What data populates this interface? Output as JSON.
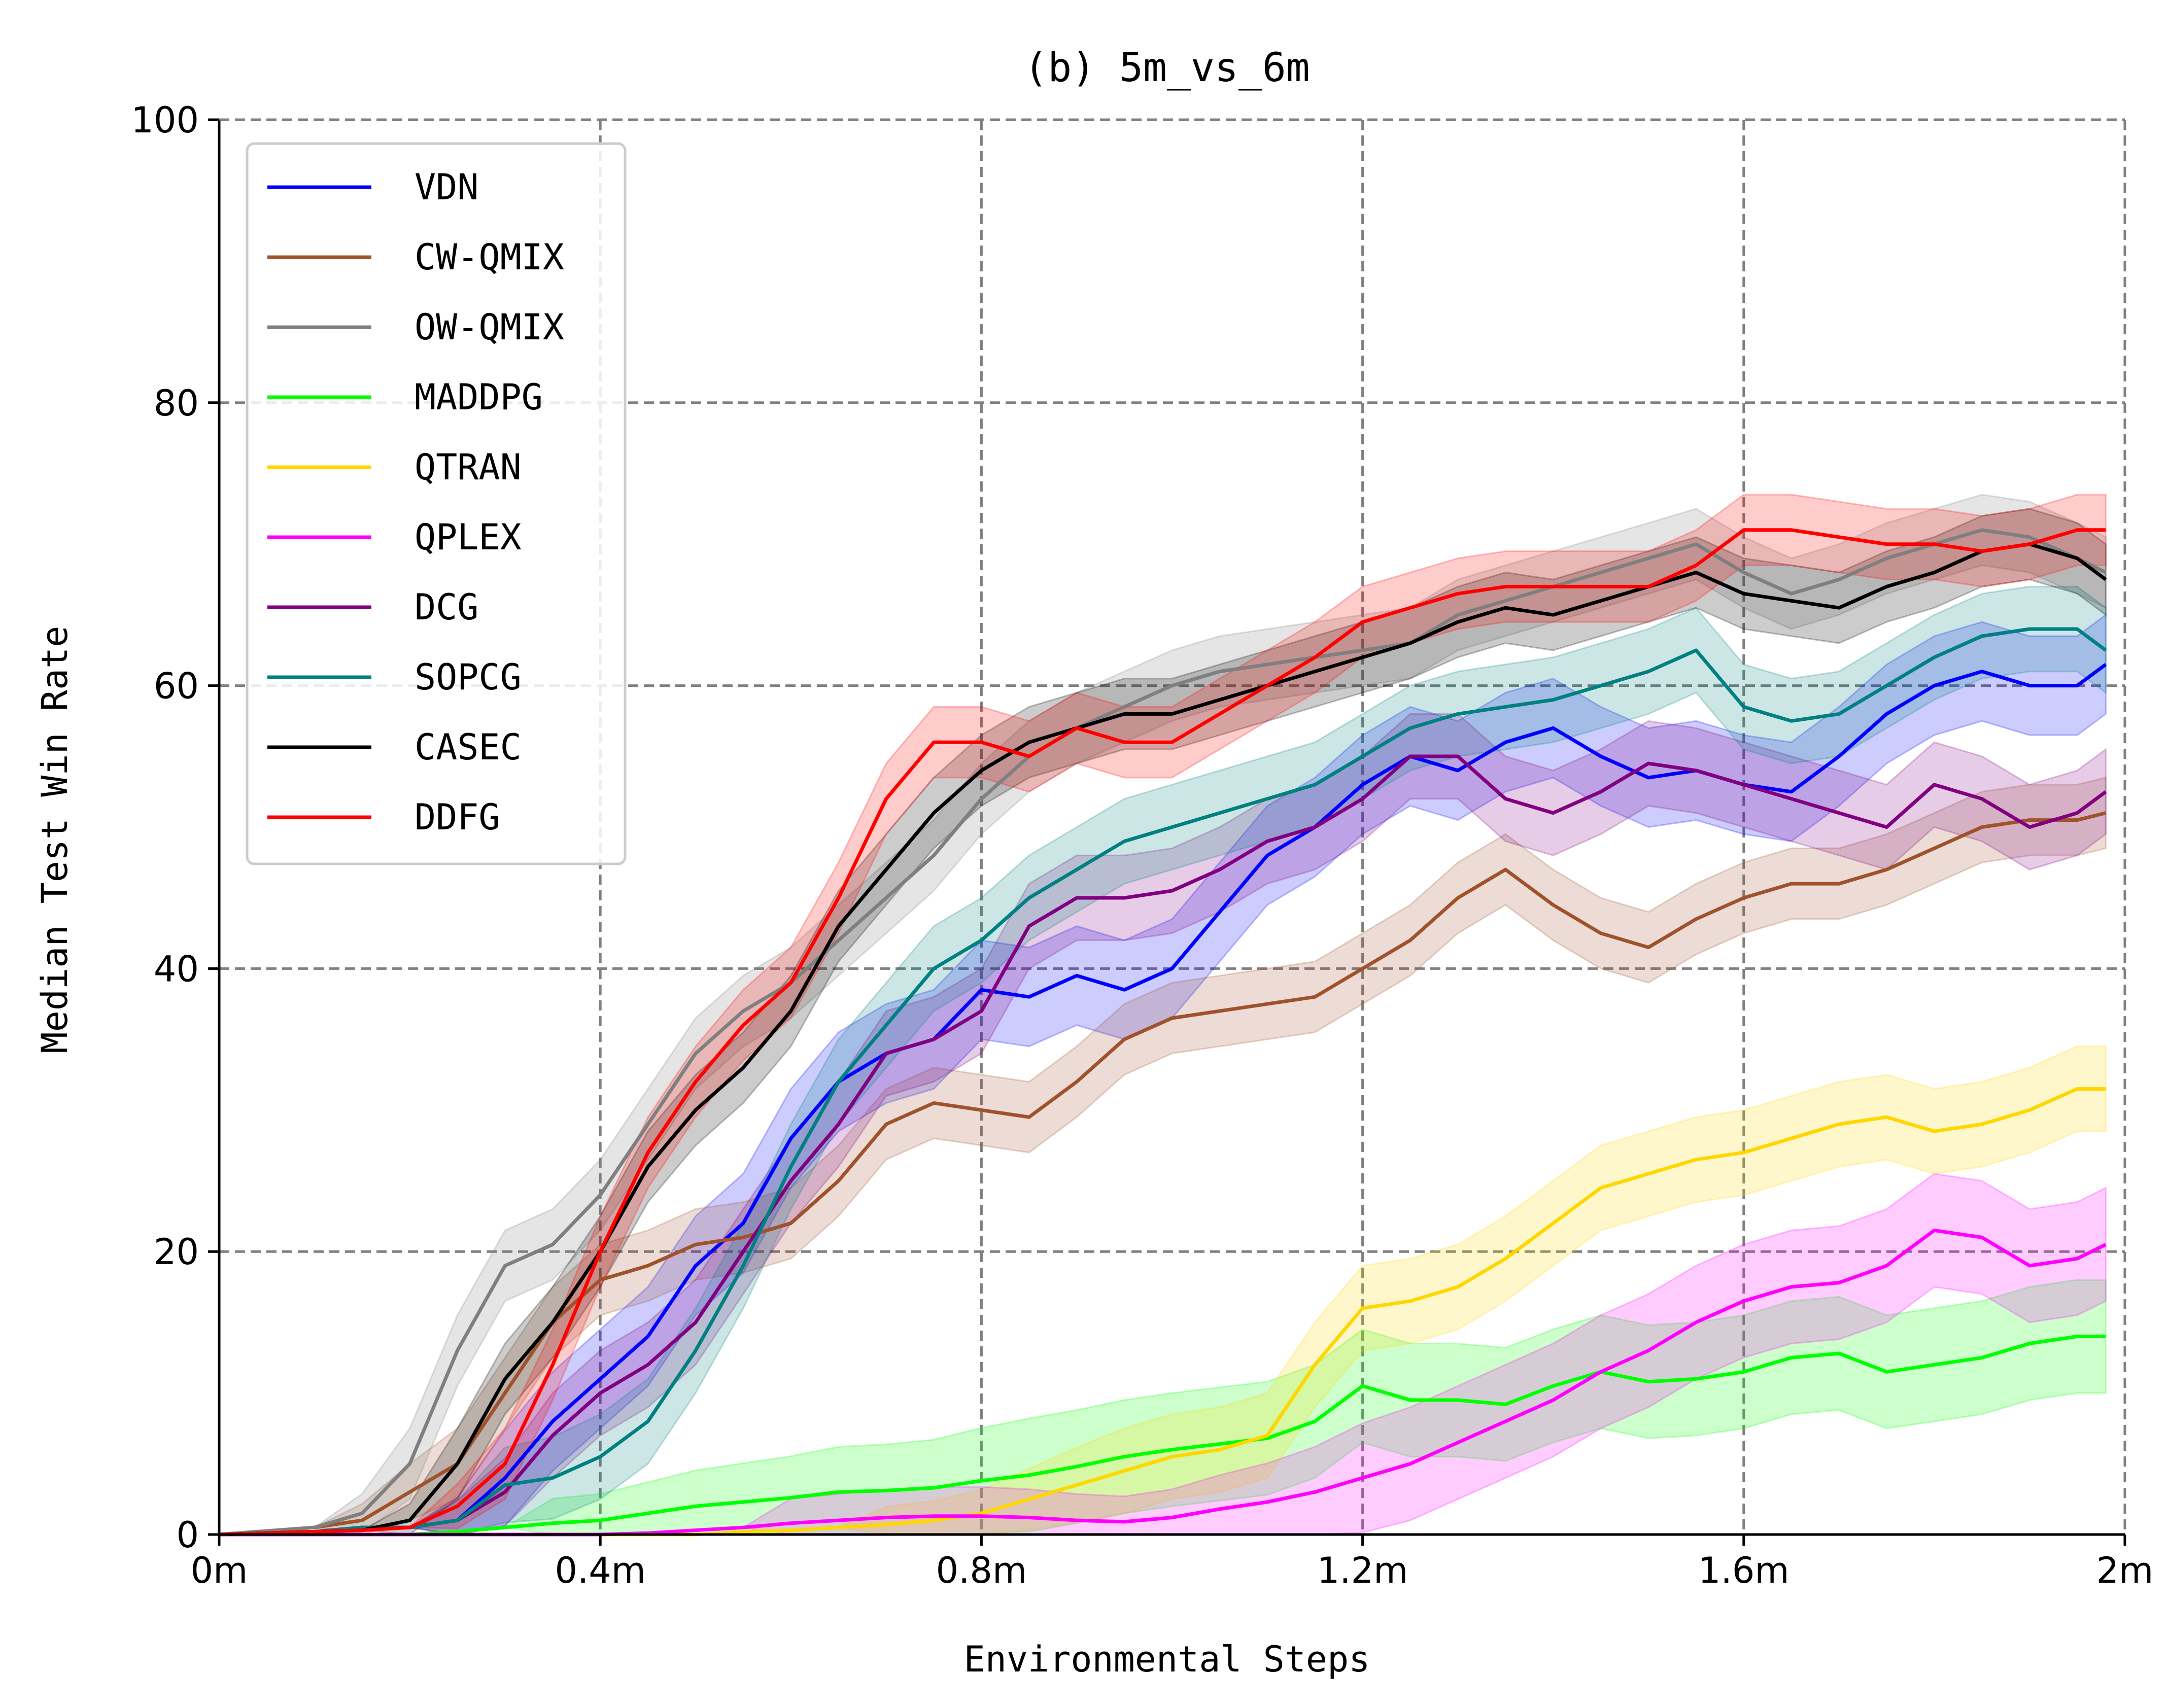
{
  "chart_data": {
    "type": "line",
    "title": "(b) 5m_vs_6m",
    "xlabel": "Environmental Steps",
    "ylabel": "Median Test Win Rate",
    "xlim": [
      0,
      2.0
    ],
    "ylim": [
      0,
      100
    ],
    "x_ticks": [
      0,
      0.4,
      0.8,
      1.2,
      1.6,
      2.0
    ],
    "x_tick_labels": [
      "0m",
      "0.4m",
      "0.8m",
      "1.2m",
      "1.6m",
      "2m"
    ],
    "y_ticks": [
      0,
      20,
      40,
      60,
      80,
      100
    ],
    "y_tick_labels": [
      "0",
      "20",
      "40",
      "60",
      "80",
      "100"
    ],
    "grid": true,
    "legend_position": "top-left",
    "x": [
      0,
      0.1,
      0.15,
      0.2,
      0.25,
      0.3,
      0.35,
      0.4,
      0.45,
      0.5,
      0.55,
      0.6,
      0.65,
      0.7,
      0.75,
      0.8,
      0.85,
      0.9,
      0.95,
      1.0,
      1.05,
      1.1,
      1.15,
      1.2,
      1.25,
      1.3,
      1.35,
      1.4,
      1.45,
      1.5,
      1.55,
      1.6,
      1.65,
      1.7,
      1.75,
      1.8,
      1.85,
      1.9,
      1.95,
      1.98
    ],
    "series": [
      {
        "name": "VDN",
        "color": "#0000ff",
        "band": 3.5,
        "values": [
          0,
          0.2,
          0.5,
          0.5,
          1,
          4,
          8,
          11,
          14,
          19,
          22,
          28,
          32,
          34,
          35,
          38.5,
          38,
          39.5,
          38.5,
          40,
          44,
          48,
          50,
          53,
          55,
          54,
          56,
          57,
          55,
          53.5,
          54,
          53,
          52.5,
          55,
          58,
          60,
          61,
          60,
          60,
          61.5
        ]
      },
      {
        "name": "CW-QMIX",
        "color": "#a0522d",
        "band": 2.5,
        "values": [
          0,
          0.5,
          1,
          3,
          5,
          10,
          15,
          18,
          19,
          20.5,
          21,
          22,
          25,
          29,
          30.5,
          30,
          29.5,
          32,
          35,
          36.5,
          37,
          37.5,
          38,
          40,
          42,
          45,
          47,
          44.5,
          42.5,
          41.5,
          43.5,
          45,
          46,
          46,
          47,
          48.5,
          50,
          50.5,
          50.5,
          51
        ]
      },
      {
        "name": "OW-QMIX",
        "color": "#7f7f7f",
        "band": 2.5,
        "values": [
          0,
          0.5,
          1.5,
          5,
          13,
          19,
          20.5,
          24,
          29,
          34,
          37,
          39,
          42,
          45,
          48,
          52,
          55,
          57,
          58.5,
          60,
          61,
          61.5,
          62,
          62.5,
          63,
          65,
          66,
          67,
          68,
          69,
          70,
          68,
          66.5,
          67.5,
          69,
          70,
          71,
          70.5,
          69,
          68
        ]
      },
      {
        "name": "MADDPG",
        "color": "#00ff00",
        "band": 4,
        "values": [
          0,
          0,
          0,
          0,
          0.2,
          0.5,
          0.8,
          1,
          1.5,
          2,
          2.3,
          2.6,
          3,
          3.1,
          3.3,
          3.8,
          4.2,
          4.8,
          5.5,
          6,
          6.4,
          6.8,
          8,
          10.5,
          9.5,
          9.5,
          9.2,
          10.5,
          11.5,
          10.8,
          11,
          11.5,
          12.5,
          12.8,
          11.5,
          12,
          12.5,
          13.5,
          14,
          14
        ]
      },
      {
        "name": "QTRAN",
        "color": "#ffd700",
        "band": 3,
        "values": [
          0,
          0,
          0,
          0,
          0,
          0,
          0,
          0,
          0,
          0,
          0.2,
          0.3,
          0.5,
          0.7,
          1,
          1.5,
          2.5,
          3.5,
          4.5,
          5.5,
          6,
          7,
          12,
          16,
          16.5,
          17.5,
          19.5,
          22,
          24.5,
          25.5,
          26.5,
          27,
          28,
          29,
          29.5,
          28.5,
          29,
          30,
          31.5,
          31.5
        ]
      },
      {
        "name": "QPLEX",
        "color": "#ff00ff",
        "band": 4,
        "values": [
          0,
          0,
          0,
          0,
          0,
          0,
          0,
          0,
          0.1,
          0.3,
          0.5,
          0.8,
          1,
          1.2,
          1.3,
          1.3,
          1.2,
          1.0,
          0.9,
          1.2,
          1.8,
          2.3,
          3,
          4,
          5,
          6.5,
          8,
          9.5,
          11.5,
          13,
          15,
          16.5,
          17.5,
          17.8,
          19,
          21.5,
          21,
          19,
          19.5,
          20.5
        ]
      },
      {
        "name": "DCG",
        "color": "#800080",
        "band": 3,
        "values": [
          0,
          0.2,
          0.5,
          0.5,
          1,
          3,
          7,
          10,
          12,
          15,
          20,
          25,
          29,
          34,
          35,
          37,
          43,
          45,
          45,
          45.5,
          47,
          49,
          50,
          52,
          55,
          55,
          52,
          51,
          52.5,
          54.5,
          54,
          53,
          52,
          51,
          50,
          53,
          52,
          50,
          51,
          52.5
        ]
      },
      {
        "name": "SOPCG",
        "color": "#008080",
        "band": 3,
        "values": [
          0,
          0.2,
          0.5,
          0.5,
          1,
          3.5,
          4,
          5.5,
          8,
          13,
          19,
          26,
          32,
          36,
          40,
          42,
          45,
          47,
          49,
          50,
          51,
          52,
          53,
          55,
          57,
          58,
          58.5,
          59,
          60,
          61,
          62.5,
          58.5,
          57.5,
          58,
          60,
          62,
          63.5,
          64,
          64,
          62.5
        ]
      },
      {
        "name": "CASEC",
        "color": "#000000",
        "band": 2.5,
        "values": [
          0,
          0.2,
          0.3,
          1,
          5,
          11,
          15,
          20,
          26,
          30,
          33,
          37,
          43,
          47,
          51,
          54,
          56,
          57,
          58,
          58,
          59,
          60,
          61,
          62,
          63,
          64.5,
          65.5,
          65,
          66,
          67,
          68,
          66.5,
          66,
          65.5,
          67,
          68,
          69.5,
          70,
          69,
          67.5
        ]
      },
      {
        "name": "DDFG",
        "color": "#ff0000",
        "band": 2.5,
        "values": [
          0,
          0.2,
          0.3,
          0.5,
          2,
          5,
          12,
          20,
          27,
          32,
          36,
          39,
          45,
          52,
          56,
          56,
          55,
          57,
          56,
          56,
          58,
          60,
          62,
          64.5,
          65.5,
          66.5,
          67,
          67,
          67,
          67,
          68.5,
          71,
          71,
          70.5,
          70,
          70,
          69.5,
          70,
          71,
          71
        ]
      }
    ]
  }
}
